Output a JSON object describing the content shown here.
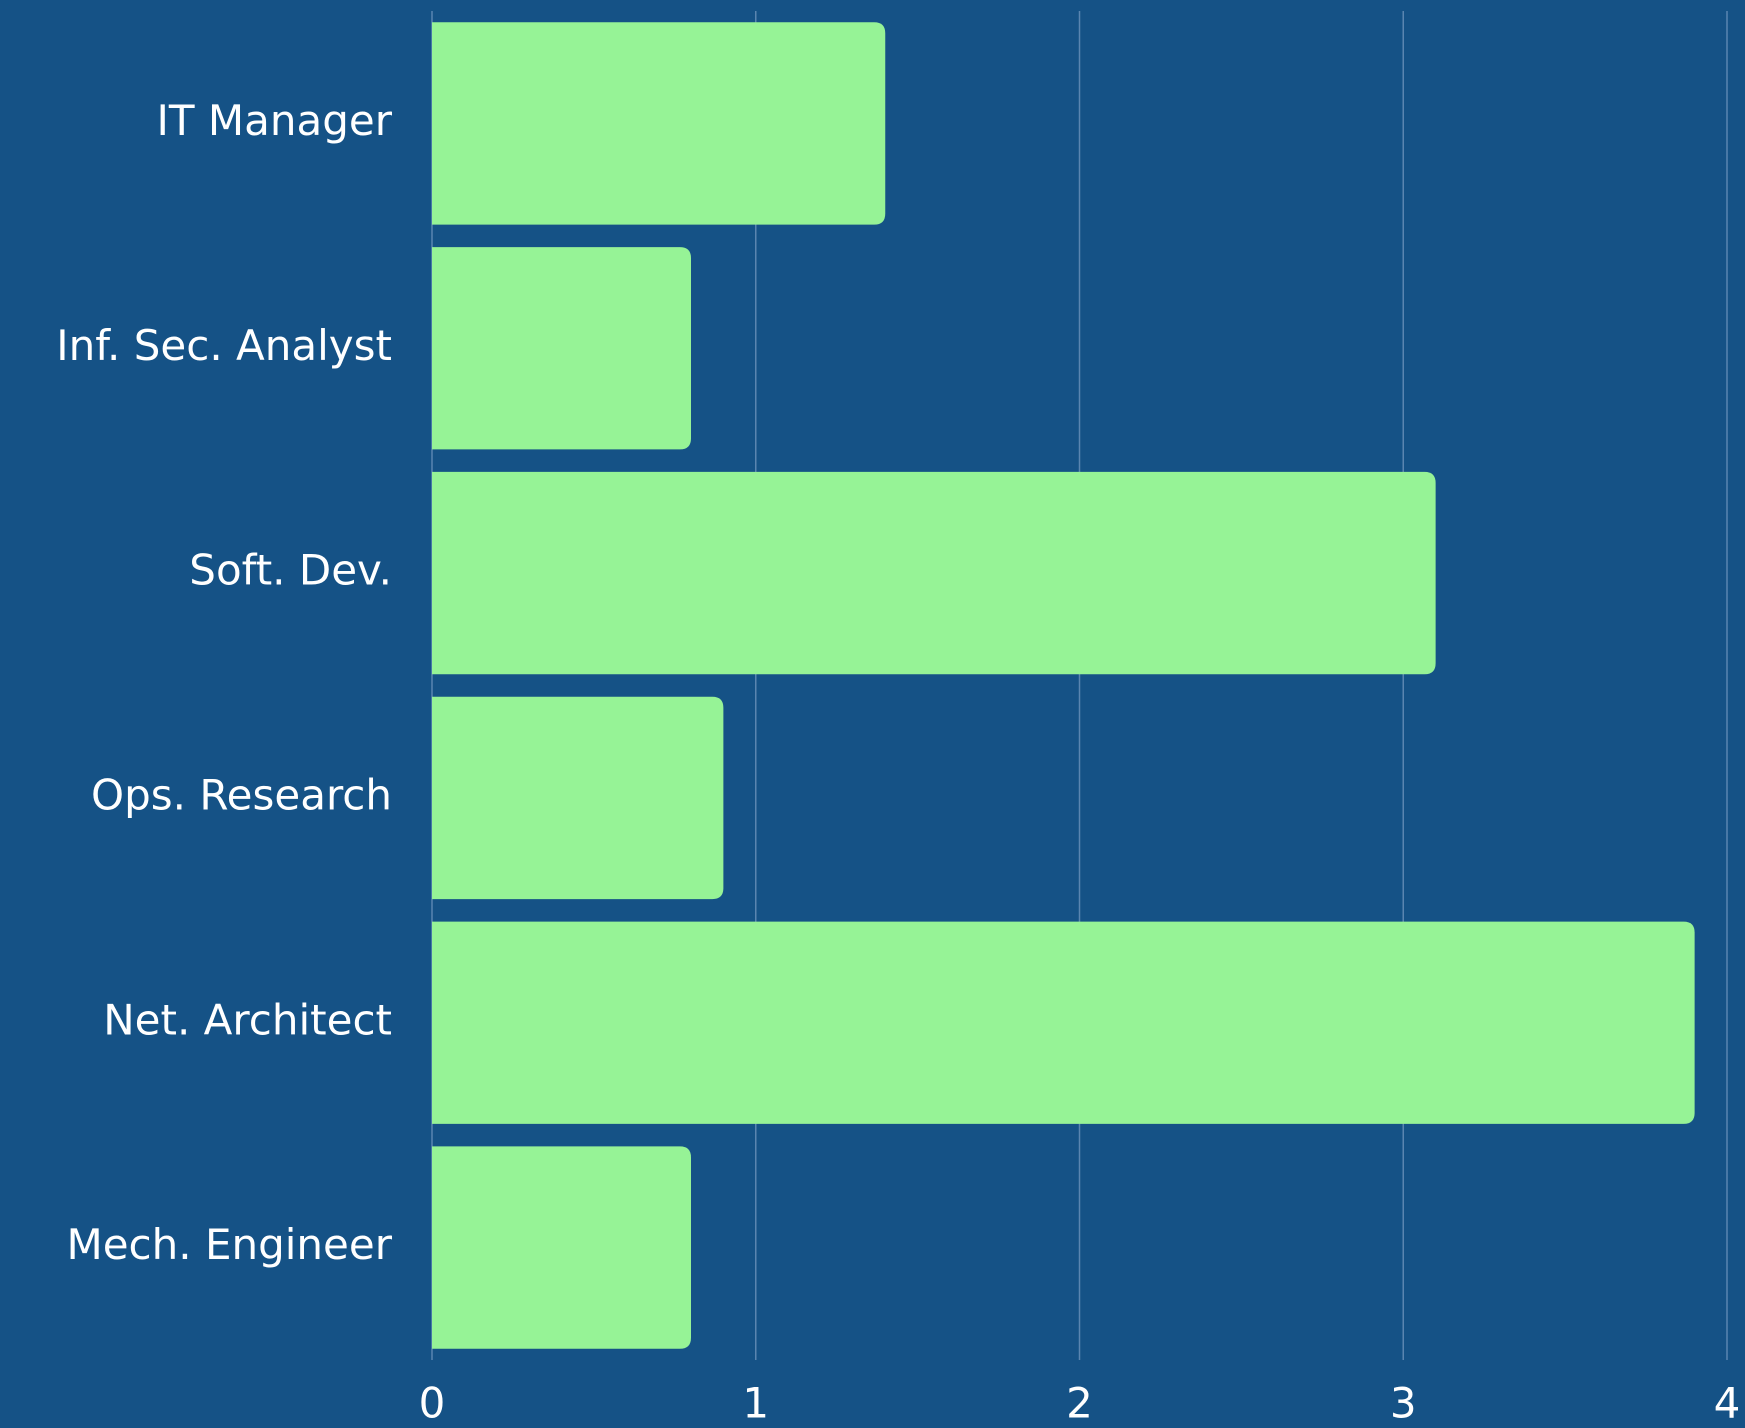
{
  "chart_data": {
    "type": "bar",
    "orientation": "horizontal",
    "categories": [
      "IT Manager",
      "Inf. Sec. Analyst",
      "Soft. Dev.",
      "Ops. Research",
      "Net. Architect",
      "Mech. Engineer"
    ],
    "values": [
      1.4,
      0.8,
      3.1,
      0.9,
      3.9,
      0.8
    ],
    "color": "#96f396",
    "xlim": [
      0,
      4
    ],
    "xticks": [
      0,
      1,
      2,
      3,
      4
    ],
    "grid": true
  }
}
